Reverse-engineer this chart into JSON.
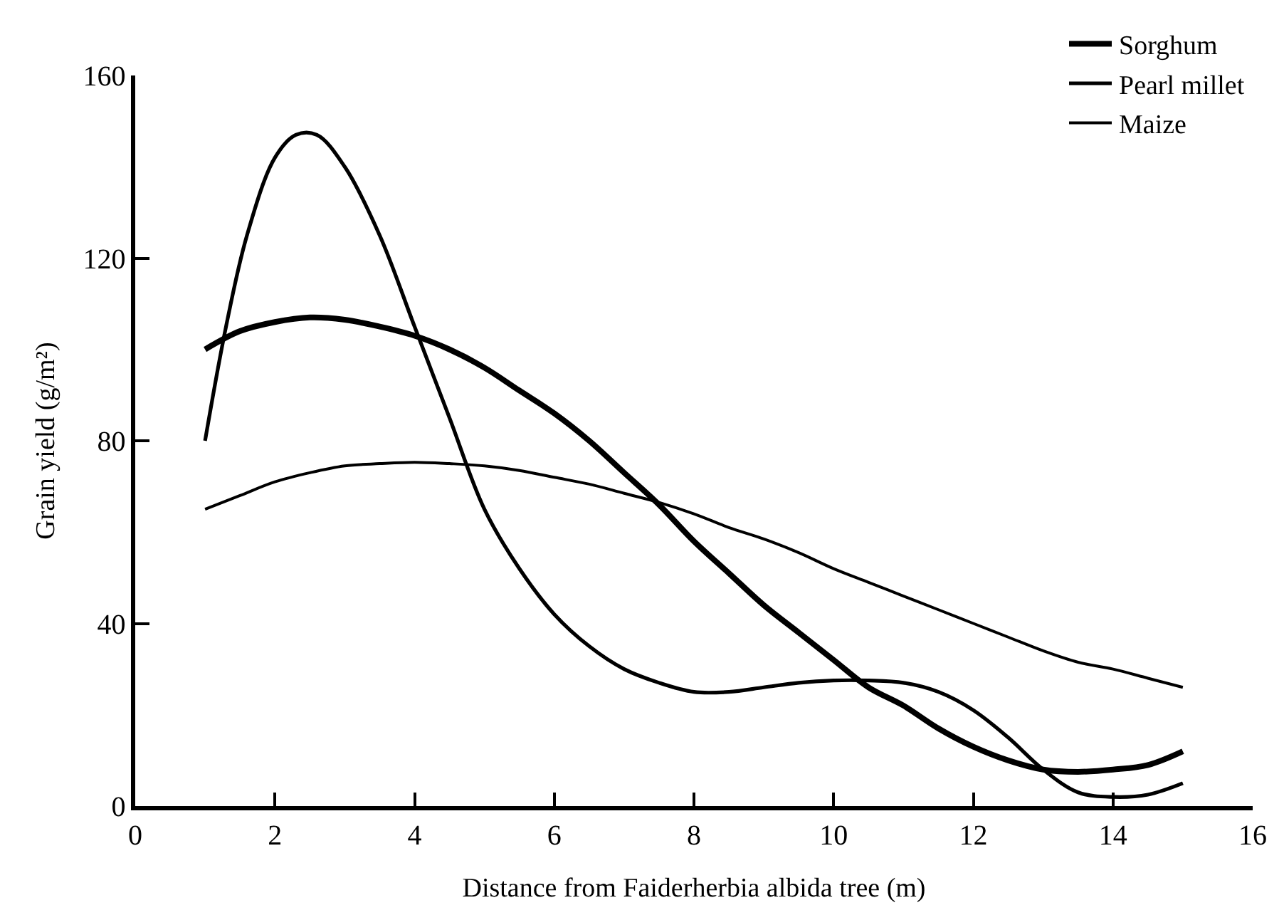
{
  "chart_data": {
    "type": "line",
    "xlabel": "Distance from Faiderherbia albida tree (m)",
    "ylabel": "Grain yield (g/m²)",
    "xlim": [
      0,
      16
    ],
    "xticks": [
      0,
      2,
      4,
      6,
      8,
      10,
      12,
      14,
      16
    ],
    "ylim": [
      0,
      160
    ],
    "yticks": [
      0,
      40,
      80,
      120,
      160
    ],
    "legend": "top right",
    "marker": "none",
    "line_style": "solid",
    "series": [
      {
        "name": "Sorghum",
        "color": "#000000",
        "x": [
          1,
          1.5,
          2,
          2.5,
          3,
          3.5,
          4,
          4.5,
          5,
          5.5,
          6,
          6.5,
          7,
          7.5,
          8,
          8.5,
          9,
          9.5,
          10,
          10.5,
          11,
          11.5,
          12,
          12.5,
          13,
          13.5,
          14,
          14.5,
          15
        ],
        "values": [
          100,
          104,
          106,
          107,
          106.5,
          105,
          103,
          100,
          96,
          91,
          86,
          80,
          73,
          66,
          58,
          51,
          44,
          38,
          32,
          26,
          22,
          17,
          13,
          10,
          8,
          7.5,
          8,
          9,
          12
        ]
      },
      {
        "name": "Pearl millet",
        "color": "#000000",
        "x": [
          1,
          1.3,
          1.6,
          2,
          2.3,
          2.6,
          3,
          3.5,
          4,
          4.5,
          5,
          5.5,
          6,
          6.5,
          7,
          7.5,
          8,
          8.5,
          9,
          9.5,
          10,
          10.5,
          11,
          11.5,
          12,
          12.5,
          13,
          13.5,
          14,
          14.5,
          15
        ],
        "values": [
          80,
          105,
          125,
          142,
          147,
          147,
          140,
          125,
          105,
          85,
          65,
          52,
          42,
          35,
          30,
          27,
          25,
          25,
          26,
          27,
          27.5,
          27.5,
          27,
          25,
          21,
          15,
          8,
          3,
          2,
          2.5,
          5
        ]
      },
      {
        "name": "Maize",
        "color": "#000000",
        "x": [
          1,
          1.5,
          2,
          2.5,
          3,
          3.5,
          4,
          4.5,
          5,
          5.5,
          6,
          6.5,
          7,
          7.5,
          8,
          8.5,
          9,
          9.5,
          10,
          10.5,
          11,
          11.5,
          12,
          12.5,
          13,
          13.5,
          14,
          14.5,
          15
        ],
        "values": [
          65,
          68,
          71,
          73,
          74.5,
          75,
          75.3,
          75,
          74.5,
          73.5,
          72,
          70.5,
          68.5,
          66.5,
          64,
          61,
          58.5,
          55.5,
          52,
          49,
          46,
          43,
          40,
          37,
          34,
          31.5,
          30,
          28,
          26
        ]
      }
    ]
  }
}
